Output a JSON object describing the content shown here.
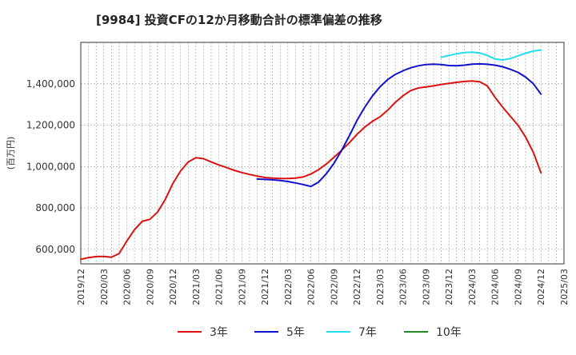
{
  "chart_data": {
    "type": "line",
    "title": "[9984]  投資CFの12か月移動合計の標準偏差の推移",
    "ylabel": "(百万円)",
    "xlabel": "",
    "ylim": [
      530000,
      1600000
    ],
    "yticks": [
      600000,
      800000,
      1000000,
      1200000,
      1400000
    ],
    "ytick_labels": [
      "600,000",
      "800,000",
      "1,000,000",
      "1,200,000",
      "1,400,000"
    ],
    "xlim": [
      "2019-12",
      "2025-03"
    ],
    "xtick_labels": [
      "2019/12",
      "2020/03",
      "2020/06",
      "2020/09",
      "2020/12",
      "2021/03",
      "2021/06",
      "2021/09",
      "2021/12",
      "2022/03",
      "2022/06",
      "2022/09",
      "2022/12",
      "2023/03",
      "2023/06",
      "2023/09",
      "2023/12",
      "2024/03",
      "2024/06",
      "2024/09",
      "2024/12",
      "2025/03"
    ],
    "grid": true,
    "legend_position": "bottom",
    "series": [
      {
        "name": "3年",
        "color": "#dd1111",
        "x": [
          "2019-12",
          "2020-01",
          "2020-02",
          "2020-03",
          "2020-04",
          "2020-05",
          "2020-06",
          "2020-07",
          "2020-08",
          "2020-09",
          "2020-10",
          "2020-11",
          "2020-12",
          "2021-01",
          "2021-02",
          "2021-03",
          "2021-04",
          "2021-05",
          "2021-06",
          "2021-07",
          "2021-08",
          "2021-09",
          "2021-10",
          "2021-11",
          "2021-12",
          "2022-01",
          "2022-02",
          "2022-03",
          "2022-04",
          "2022-05",
          "2022-06",
          "2022-07",
          "2022-08",
          "2022-09",
          "2022-10",
          "2022-11",
          "2022-12",
          "2023-01",
          "2023-02",
          "2023-03",
          "2023-04",
          "2023-05",
          "2023-06",
          "2023-07",
          "2023-08",
          "2023-09",
          "2023-10",
          "2023-11",
          "2023-12",
          "2024-01",
          "2024-02",
          "2024-03",
          "2024-04",
          "2024-05",
          "2024-06",
          "2024-07",
          "2024-08",
          "2024-09",
          "2024-10",
          "2024-11",
          "2024-12"
        ],
        "values": [
          552000,
          560000,
          565000,
          566000,
          562000,
          580000,
          640000,
          695000,
          735000,
          745000,
          780000,
          840000,
          918000,
          978000,
          1022000,
          1043000,
          1038000,
          1022000,
          1008000,
          995000,
          982000,
          971000,
          962000,
          954000,
          947000,
          944000,
          942000,
          942000,
          944000,
          950000,
          964000,
          985000,
          1012000,
          1045000,
          1078000,
          1115000,
          1155000,
          1190000,
          1218000,
          1240000,
          1272000,
          1310000,
          1342000,
          1367000,
          1380000,
          1385000,
          1390000,
          1397000,
          1402000,
          1407000,
          1411000,
          1414000,
          1410000,
          1390000,
          1335000,
          1287000,
          1243000,
          1200000,
          1142000,
          1068000,
          970000
        ]
      },
      {
        "name": "5年",
        "color": "#1111cc",
        "x": [
          "2021-11",
          "2021-12",
          "2022-01",
          "2022-02",
          "2022-03",
          "2022-04",
          "2022-05",
          "2022-06",
          "2022-07",
          "2022-08",
          "2022-09",
          "2022-10",
          "2022-11",
          "2022-12",
          "2023-01",
          "2023-02",
          "2023-03",
          "2023-04",
          "2023-05",
          "2023-06",
          "2023-07",
          "2023-08",
          "2023-09",
          "2023-10",
          "2023-11",
          "2023-12",
          "2024-01",
          "2024-02",
          "2024-03",
          "2024-04",
          "2024-05",
          "2024-06",
          "2024-07",
          "2024-08",
          "2024-09",
          "2024-10",
          "2024-11",
          "2024-12"
        ],
        "values": [
          940000,
          938000,
          936000,
          933000,
          928000,
          921000,
          913000,
          904000,
          925000,
          965000,
          1015000,
          1078000,
          1148000,
          1222000,
          1285000,
          1340000,
          1385000,
          1420000,
          1445000,
          1463000,
          1477000,
          1487000,
          1493000,
          1495000,
          1493000,
          1488000,
          1487000,
          1490000,
          1495000,
          1496000,
          1494000,
          1490000,
          1482000,
          1470000,
          1455000,
          1432000,
          1400000,
          1350000
        ]
      },
      {
        "name": "7年",
        "color": "#22ddee",
        "x": [
          "2023-11",
          "2023-12",
          "2024-01",
          "2024-02",
          "2024-03",
          "2024-04",
          "2024-05",
          "2024-06",
          "2024-07",
          "2024-08",
          "2024-09",
          "2024-10",
          "2024-11",
          "2024-12"
        ],
        "values": [
          1528000,
          1537000,
          1545000,
          1551000,
          1553000,
          1549000,
          1537000,
          1520000,
          1515000,
          1522000,
          1535000,
          1548000,
          1558000,
          1563000
        ]
      },
      {
        "name": "10年",
        "color": "#228822",
        "x": [],
        "values": []
      }
    ]
  }
}
